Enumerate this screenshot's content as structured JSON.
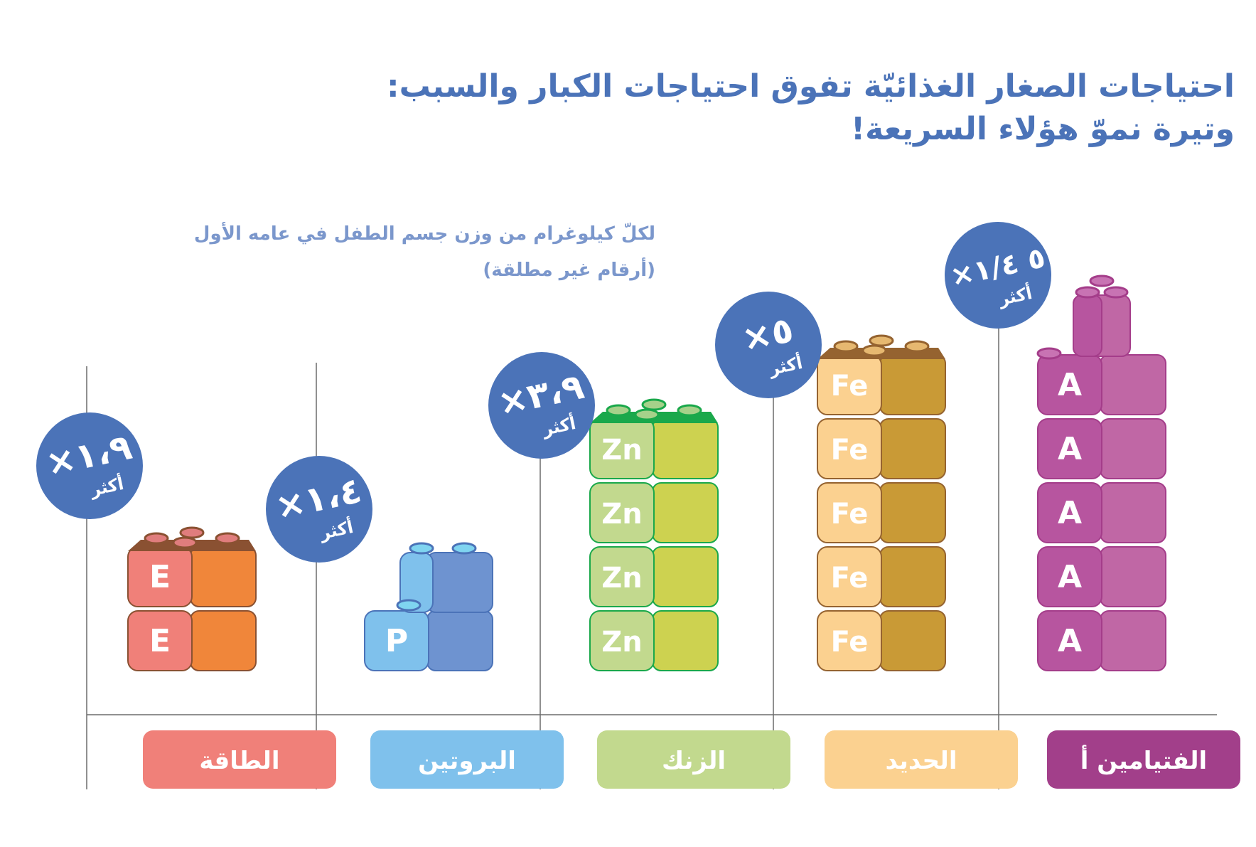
{
  "title": {
    "line1": "احتياجات الصغار الغذائيّة تفوق احتياجات الكبار والسبب:",
    "line2": "وتيرة نموّ هؤلاء السريعة!"
  },
  "note": {
    "line1": "لكلّ كيلوغرام من وزن جسم الطفل في عامه الأول",
    "line2": "(أرقام غير مطلقة)"
  },
  "chart_data": {
    "type": "bar",
    "bars": [
      {
        "category": "الطاقة",
        "symbol": "E",
        "blocks": 2,
        "value": 1.9,
        "value_label": "١،٩×",
        "more_label": "أكثر",
        "color": "#f08079",
        "face": "#f0863a",
        "top": "#8a5132",
        "stud": "#e07d7d",
        "label_bg": "#f08079"
      },
      {
        "category": "البروتين",
        "symbol": "P",
        "blocks": 1.5,
        "value": 1.4,
        "value_label": "١،٤×",
        "more_label": "أكثر",
        "color": "#7fc1ec",
        "face": "#6e93d0",
        "top": "#4b73b8",
        "stud": "#7fd4f0",
        "label_bg": "#7fc1ec"
      },
      {
        "category": "الزنك",
        "symbol": "Zn",
        "blocks": 4,
        "value": 3.9,
        "value_label": "٣،٩×",
        "more_label": "أكثر",
        "color": "#c2d98e",
        "face": "#cdd250",
        "top": "#1aa84b",
        "stud": "#a6d18a",
        "label_bg": "#c2d98e"
      },
      {
        "category": "الحديد",
        "symbol": "Fe",
        "blocks": 5,
        "value": 5,
        "value_label": "٥×",
        "more_label": "أكثر",
        "color": "#fbd190",
        "face": "#c99a36",
        "top": "#956330",
        "stud": "#e6b870",
        "label_bg": "#fbd190"
      },
      {
        "category": "الفتيامين أ",
        "symbol": "A",
        "blocks": 6,
        "value": 5.25,
        "value_label": "٥ ١/٤×",
        "more_label": "أكثر",
        "color": "#b7559f",
        "face": "#c067a5",
        "top": "#a43d8a",
        "stud": "#c873b3",
        "label_bg": "#a23f8a"
      }
    ],
    "legend": "none",
    "grid": false
  },
  "colors": {
    "title": "#4b73b8",
    "note": "#7b97cc",
    "badge": "#4b73b8",
    "axis": "#6b6b6b"
  }
}
